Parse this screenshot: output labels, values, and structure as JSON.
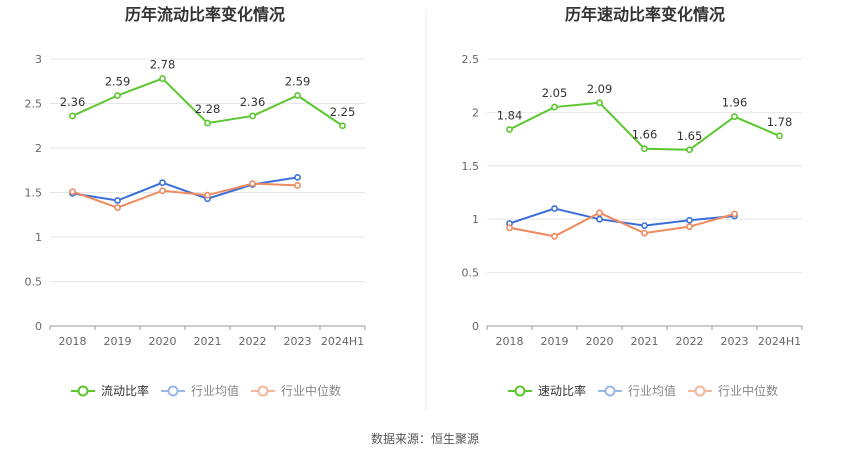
{
  "source_text": "数据来源：恒生聚源",
  "colors": {
    "main": "#5ac72e",
    "avg": "#3a6fd8",
    "median": "#ee8a5e",
    "avg_legend": "#9bb7e8",
    "median_legend": "#f4b79b",
    "grid": "#e6e6e6",
    "axis": "#999999"
  },
  "chart_data": [
    {
      "type": "line",
      "title": "历年流动比率变化情况",
      "categories": [
        "2018",
        "2019",
        "2020",
        "2021",
        "2022",
        "2023",
        "2024H1"
      ],
      "ylim": [
        0,
        3
      ],
      "yticks": [
        0,
        0.5,
        1,
        1.5,
        2,
        2.5,
        3
      ],
      "ytick_labels": [
        "0",
        "0.5",
        "1",
        "1.5",
        "2",
        "2.5",
        "3"
      ],
      "grid": true,
      "legend_position": "bottom",
      "series": [
        {
          "name": "流动比率",
          "role": "main",
          "values": [
            2.36,
            2.59,
            2.78,
            2.28,
            2.36,
            2.59,
            2.25
          ],
          "labels": [
            "2.36",
            "2.59",
            "2.78",
            "2.28",
            "2.36",
            "2.59",
            "2.25"
          ]
        },
        {
          "name": "行业均值",
          "role": "avg",
          "values": [
            1.49,
            1.41,
            1.61,
            1.43,
            1.59,
            1.67,
            null
          ]
        },
        {
          "name": "行业中位数",
          "role": "median",
          "values": [
            1.51,
            1.33,
            1.52,
            1.47,
            1.6,
            1.58,
            null
          ]
        }
      ]
    },
    {
      "type": "line",
      "title": "历年速动比率变化情况",
      "categories": [
        "2018",
        "2019",
        "2020",
        "2021",
        "2022",
        "2023",
        "2024H1"
      ],
      "ylim": [
        0,
        2.5
      ],
      "yticks": [
        0,
        0.5,
        1,
        1.5,
        2,
        2.5
      ],
      "ytick_labels": [
        "0",
        "0.5",
        "1",
        "1.5",
        "2",
        "2.5"
      ],
      "grid": true,
      "legend_position": "bottom",
      "series": [
        {
          "name": "速动比率",
          "role": "main",
          "values": [
            1.84,
            2.05,
            2.09,
            1.66,
            1.65,
            1.96,
            1.78
          ],
          "labels": [
            "1.84",
            "2.05",
            "2.09",
            "1.66",
            "1.65",
            "1.96",
            "1.78"
          ]
        },
        {
          "name": "行业均值",
          "role": "avg",
          "values": [
            0.96,
            1.1,
            1.0,
            0.94,
            0.99,
            1.03,
            null
          ]
        },
        {
          "name": "行业中位数",
          "role": "median",
          "values": [
            0.92,
            0.84,
            1.06,
            0.87,
            0.93,
            1.05,
            null
          ]
        }
      ]
    }
  ]
}
